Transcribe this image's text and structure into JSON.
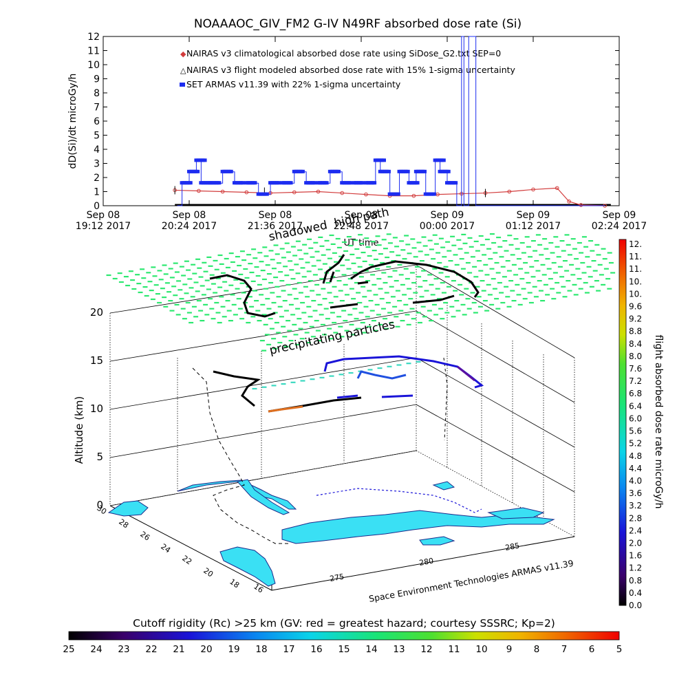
{
  "title": "NOAAAOC_GIV_FM2 G-IV    N49RF  absorbed dose rate (Si)",
  "top_chart": {
    "ylabel": "dD(Si)/dt microGy/h",
    "xlabel": "UT time",
    "y_ticks": [
      "0",
      "1",
      "2",
      "3",
      "4",
      "5",
      "6",
      "7",
      "8",
      "9",
      "10",
      "11",
      "12"
    ],
    "x_ticks": [
      {
        "l1": "Sep 08",
        "l2": "19:12 2017"
      },
      {
        "l1": "Sep 08",
        "l2": "20:24 2017"
      },
      {
        "l1": "Sep 08",
        "l2": "21:36 2017"
      },
      {
        "l1": "Sep 08",
        "l2": "22:48 2017"
      },
      {
        "l1": "Sep 09",
        "l2": "00:00 2017"
      },
      {
        "l1": "Sep 09",
        "l2": "01:12 2017"
      },
      {
        "l1": "Sep 09",
        "l2": "02:24 2017"
      }
    ],
    "legend": [
      "NAIRAS v3 climatological absorbed dose rate using SiDose_G2.txt SEP=0",
      "NAIRAS v3 flight modeled absorbed dose rate with 15% 1-sigma uncertainty",
      "SET ARMAS v11.39 with 22% 1-sigma uncertainty"
    ]
  },
  "chart_data": [
    {
      "type": "line",
      "title": "NOAAAOC_GIV_FM2 G-IV    N49RF  absorbed dose rate (Si)",
      "xlabel": "UT time",
      "ylabel": "dD(Si)/dt microGy/h",
      "ylim": [
        0,
        12
      ],
      "xlim_minutes_after_1912": [
        0,
        432
      ],
      "x_unit": "minutes after Sep 08 19:12 2017",
      "series": [
        {
          "name": "NAIRAS v3 climatological absorbed dose rate using SiDose_G2.txt SEP=0",
          "color": "#d23c3c",
          "x": [
            60,
            80,
            100,
            120,
            140,
            160,
            180,
            200,
            220,
            240,
            260,
            280,
            300,
            320,
            340,
            360,
            380,
            390,
            400,
            420
          ],
          "values": [
            1.1,
            1.05,
            1.0,
            0.95,
            0.9,
            0.95,
            1.0,
            0.9,
            0.8,
            0.7,
            0.7,
            0.8,
            0.85,
            0.9,
            1.0,
            1.15,
            1.25,
            0.3,
            0.05,
            0.0
          ]
        },
        {
          "name": "NAIRAS v3 flight modeled absorbed dose rate with 15% 1-sigma uncertainty",
          "color": "#000000",
          "x": [
            60,
            425
          ],
          "values": [
            0.0,
            0.0
          ]
        },
        {
          "name": "SET ARMAS v11.39 with 22% 1-sigma uncertainty",
          "color": "#1c2cf0",
          "x": [
            62,
            66,
            72,
            78,
            82,
            90,
            100,
            110,
            120,
            130,
            140,
            150,
            160,
            170,
            180,
            190,
            200,
            210,
            220,
            228,
            232,
            240,
            248,
            256,
            262,
            270,
            278,
            282,
            288,
            296,
            300,
            302,
            306,
            312,
            316,
            420
          ],
          "values": [
            0,
            1.6,
            2.4,
            3.2,
            1.6,
            1.6,
            2.4,
            1.6,
            1.6,
            0.8,
            1.6,
            1.6,
            2.4,
            1.6,
            1.6,
            2.4,
            1.6,
            1.6,
            1.6,
            3.2,
            2.4,
            0.8,
            2.4,
            1.6,
            2.4,
            0.8,
            3.2,
            2.4,
            1.6,
            0.0,
            12,
            0.0,
            12,
            0.0,
            0.0,
            0.0
          ]
        }
      ]
    },
    {
      "type": "scatter",
      "title": "",
      "xlabel": "",
      "ylabel": "Altitude (km)",
      "zlim": [
        0,
        20
      ],
      "z_ticks": [
        "0",
        "5",
        "10",
        "15",
        "20"
      ],
      "lat_ticks": [
        "30",
        "28",
        "26",
        "24",
        "22",
        "20",
        "18"
      ],
      "lon_ticks": [
        "275",
        "280",
        "285"
      ],
      "series": [
        {
          "name": "precipitating particles",
          "altitude_km": 20
        },
        {
          "name": "shadowed high path",
          "altitude_km": 22
        },
        {
          "name": "flight absorbed dose rate microGy/h",
          "altitude_km_range": [
            10,
            13
          ]
        }
      ]
    }
  ],
  "annotations": {
    "precip": "precipitating particles",
    "shadowed": "shadowed",
    "highpath": "high path",
    "credit": "Space Environment Technologies ARMAS v11.39"
  },
  "colorbar_right": {
    "label": "flight absorbed dose rate microGy/h",
    "ticks": [
      "12.",
      "11.",
      "11.",
      "10.",
      "10.",
      "9.6",
      "9.2",
      "8.8",
      "8.4",
      "8.0",
      "7.6",
      "7.2",
      "6.8",
      "6.4",
      "6.0",
      "5.6",
      "5.2",
      "4.8",
      "4.4",
      "4.0",
      "3.6",
      "3.2",
      "2.8",
      "2.4",
      "2.0",
      "1.6",
      "1.2",
      "0.8",
      "0.4",
      "0.0"
    ]
  },
  "colorbar_bottom": {
    "label": "Cutoff rigidity (Rc) >25 km (GV: red = greatest hazard; courtesy SSSRC; Kp=2)",
    "ticks": [
      "25",
      "24",
      "23",
      "22",
      "21",
      "20",
      "19",
      "18",
      "17",
      "16",
      "15",
      "14",
      "13",
      "12",
      "11",
      "10",
      "9",
      "8",
      "7",
      "6",
      "5"
    ]
  },
  "colors": {
    "nairas_clim": "#d23c3c",
    "armas": "#1c2cf0",
    "precip_dash": "#27e86a",
    "land": "#3ae0f4",
    "flight_black": "#000000"
  }
}
